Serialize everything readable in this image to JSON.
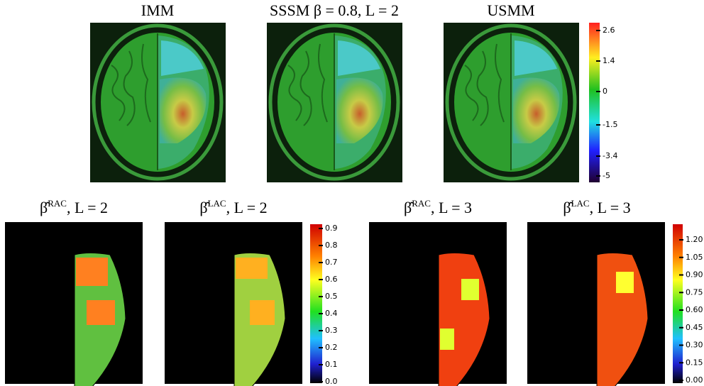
{
  "top_panels": [
    {
      "title": "IMM"
    },
    {
      "title": "SSSM β = 0.8, L = 2"
    },
    {
      "title": "USMM"
    }
  ],
  "top_colorbar": {
    "ticks": [
      2.6,
      1.4,
      0,
      -1.5,
      -3.4,
      -5
    ]
  },
  "bottom_panels": [
    {
      "symbol": "β̂",
      "superscript": "RAC",
      "suffix": ", L = 2"
    },
    {
      "symbol": "β̂",
      "superscript": "LAC",
      "suffix": ", L = 2"
    },
    {
      "symbol": "β̂",
      "superscript": "RAC",
      "suffix": ", L = 3"
    },
    {
      "symbol": "β̂",
      "superscript": "LAC",
      "suffix": ", L = 3"
    }
  ],
  "colorbar_l2": {
    "ticks": [
      0.9,
      0.8,
      0.7,
      0.6,
      0.5,
      0.4,
      0.3,
      0.2,
      0.1,
      {
        "value": 0,
        "label": "0.0"
      }
    ]
  },
  "colorbar_l3": {
    "ticks": [
      {
        "value": 1.2,
        "label": "1.20"
      },
      {
        "value": 1.05,
        "label": "1.05"
      },
      {
        "value": 0.9,
        "label": "0.90"
      },
      {
        "value": 0.75,
        "label": "0.75"
      },
      {
        "value": 0.6,
        "label": "0.60"
      },
      {
        "value": 0.45,
        "label": "0.45"
      },
      {
        "value": 0.3,
        "label": "0.30"
      },
      {
        "value": 0.15,
        "label": "0.15"
      },
      {
        "value": 0,
        "label": "0.00"
      }
    ]
  }
}
